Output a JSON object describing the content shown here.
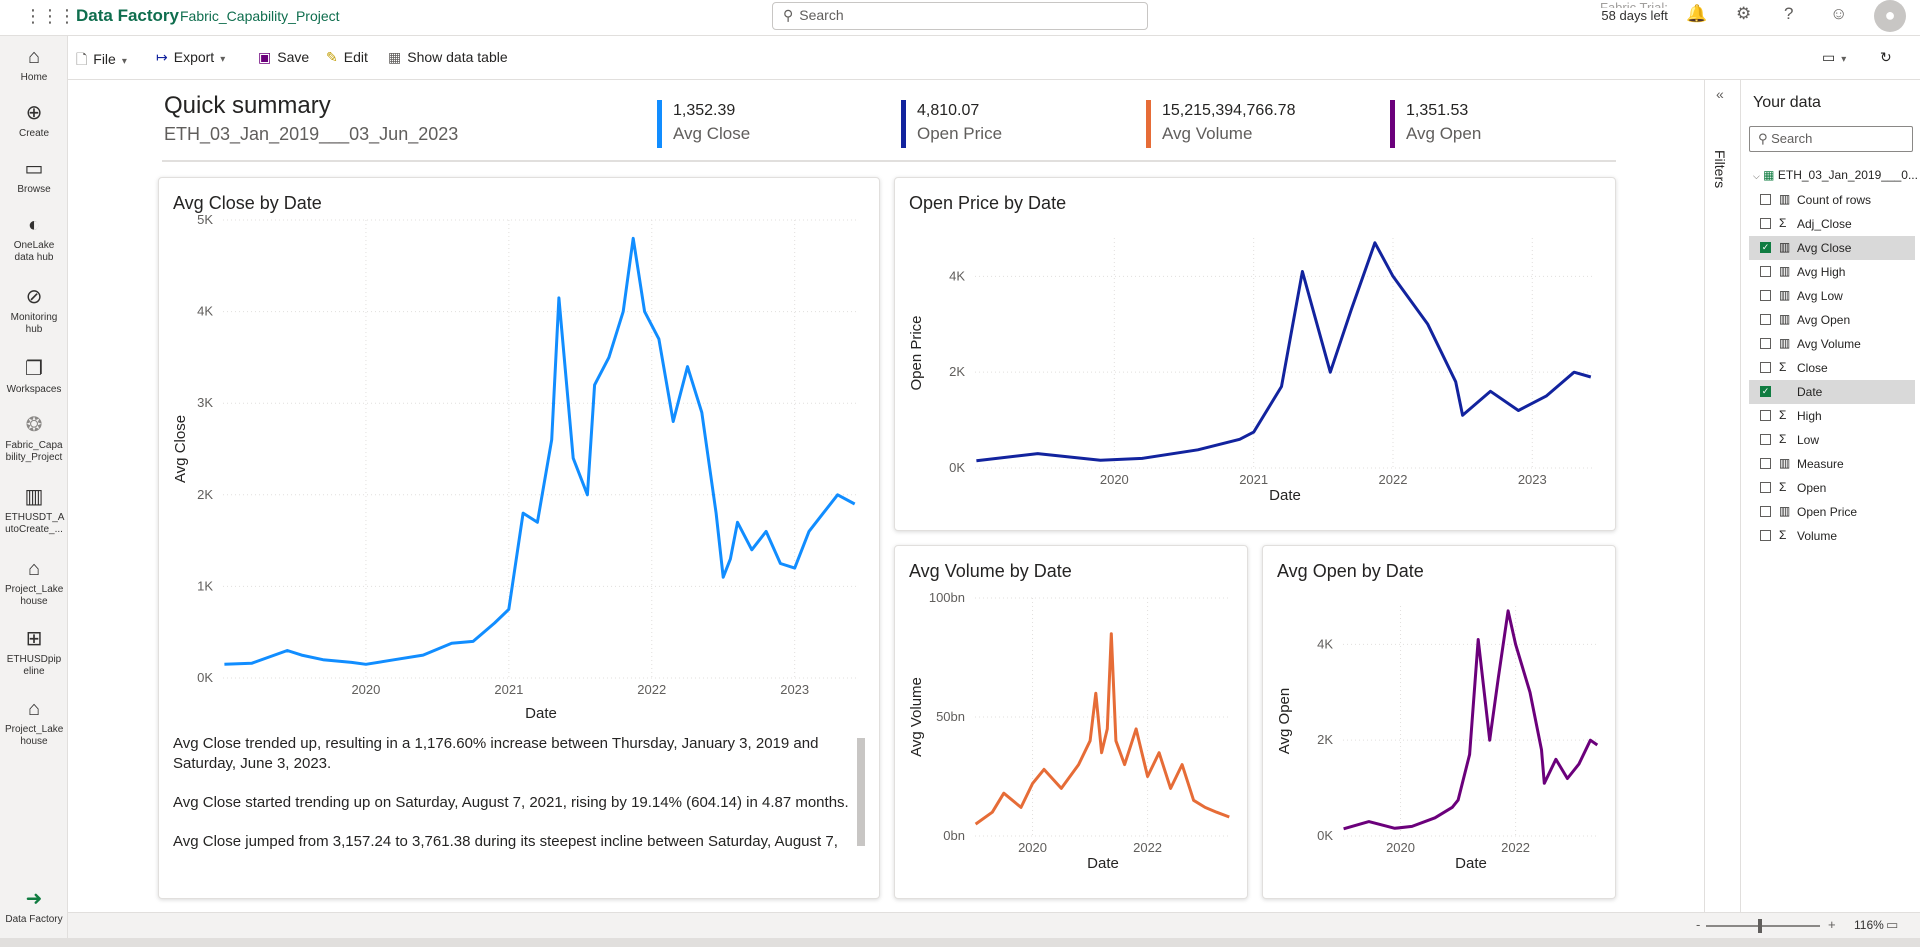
{
  "topbar": {
    "app_name": "Data Factory",
    "project": "Fabric_Capability_Project",
    "search_placeholder": "Search",
    "trial_line1": "Fabric Trial:",
    "trial_line2": "58 days left"
  },
  "rail": {
    "items": [
      {
        "label": "Home",
        "icon": "home-icon"
      },
      {
        "label": "Create",
        "icon": "create-icon"
      },
      {
        "label": "Browse",
        "icon": "folder-icon"
      },
      {
        "label": "OneLake data hub",
        "icon": "onelake-icon"
      },
      {
        "label": "Monitoring hub",
        "icon": "monitor-icon"
      },
      {
        "label": "Workspaces",
        "icon": "workspaces-icon"
      },
      {
        "label": "Fabric_Capa bility_Project",
        "icon": "workspace-icon"
      },
      {
        "label": "ETHUSDT_A utoCreate_...",
        "icon": "report-icon"
      },
      {
        "label": "Project_Lake house",
        "icon": "lakehouse-icon"
      },
      {
        "label": "ETHUSDpip eline",
        "icon": "pipeline-icon"
      },
      {
        "label": "Project_Lake house",
        "icon": "lakehouse-icon"
      }
    ],
    "footer_label": "Data Factory"
  },
  "toolbar": {
    "file": "File",
    "export": "Export",
    "save": "Save",
    "edit": "Edit",
    "show_table": "Show data table"
  },
  "summary": {
    "title": "Quick summary",
    "subtitle": "ETH_03_Jan_2019___03_Jun_2023",
    "kpis": [
      {
        "value": "1,352.39",
        "label": "Avg Close",
        "color": "#118dff"
      },
      {
        "value": "4,810.07",
        "label": "Open Price",
        "color": "#12239e"
      },
      {
        "value": "15,215,394,766.78",
        "label": "Avg Volume",
        "color": "#e66c37"
      },
      {
        "value": "1,351.53",
        "label": "Avg Open",
        "color": "#6b007b"
      }
    ]
  },
  "cards": {
    "close": {
      "title": "Avg Close by Date"
    },
    "open_price": {
      "title": "Open Price by Date"
    },
    "volume": {
      "title": "Avg Volume by Date"
    },
    "avg_open": {
      "title": "Avg Open by Date"
    }
  },
  "narrative": [
    "Avg Close trended up, resulting in a 1,176.60% increase between Thursday, January 3, 2019 and Saturday, June 3, 2023.",
    "Avg Close started trending up on Saturday, August 7, 2021, rising by 19.14% (604.14) in 4.87 months.",
    "Avg Close jumped from 3,157.24 to 3,761.38 during its steepest incline between Saturday, August 7,"
  ],
  "panes": {
    "filters": "Filters",
    "data_title": "Your data",
    "search_placeholder": "Search",
    "table_name": "ETH_03_Jan_2019___0...",
    "fields": [
      {
        "name": "Count of rows",
        "type": "measure",
        "checked": false
      },
      {
        "name": "Adj_Close",
        "type": "sum",
        "checked": false
      },
      {
        "name": "Avg Close",
        "type": "measure",
        "checked": true
      },
      {
        "name": "Avg High",
        "type": "measure",
        "checked": false
      },
      {
        "name": "Avg Low",
        "type": "measure",
        "checked": false
      },
      {
        "name": "Avg Open",
        "type": "measure",
        "checked": false
      },
      {
        "name": "Avg Volume",
        "type": "measure",
        "checked": false
      },
      {
        "name": "Close",
        "type": "sum",
        "checked": false
      },
      {
        "name": "Date",
        "type": "none",
        "checked": true
      },
      {
        "name": "High",
        "type": "sum",
        "checked": false
      },
      {
        "name": "Low",
        "type": "sum",
        "checked": false
      },
      {
        "name": "Measure",
        "type": "measure",
        "checked": false
      },
      {
        "name": "Open",
        "type": "sum",
        "checked": false
      },
      {
        "name": "Open Price",
        "type": "measure",
        "checked": false
      },
      {
        "name": "Volume",
        "type": "sum",
        "checked": false
      }
    ]
  },
  "status": {
    "zoom": "116%"
  },
  "chart_data": [
    {
      "type": "line",
      "title": "Avg Close by Date",
      "xlabel": "Date",
      "ylabel": "Avg Close",
      "xlim": [
        2019.0,
        2023.45
      ],
      "ylim": [
        0,
        5000
      ],
      "yticks": [
        "0K",
        "1K",
        "2K",
        "3K",
        "4K",
        "5K"
      ],
      "xticks": [
        "2020",
        "2021",
        "2022",
        "2023"
      ],
      "color": "#118dff",
      "x": [
        2019.01,
        2019.2,
        2019.45,
        2019.55,
        2019.7,
        2019.9,
        2020.0,
        2020.2,
        2020.4,
        2020.6,
        2020.75,
        2020.9,
        2021.0,
        2021.1,
        2021.2,
        2021.3,
        2021.35,
        2021.45,
        2021.55,
        2021.6,
        2021.7,
        2021.8,
        2021.87,
        2021.95,
        2022.05,
        2022.15,
        2022.25,
        2022.35,
        2022.45,
        2022.5,
        2022.55,
        2022.6,
        2022.7,
        2022.8,
        2022.9,
        2023.0,
        2023.1,
        2023.2,
        2023.3,
        2023.42
      ],
      "y": [
        150,
        160,
        300,
        250,
        200,
        170,
        150,
        200,
        250,
        380,
        400,
        600,
        750,
        1800,
        1700,
        2600,
        4150,
        2400,
        2000,
        3200,
        3500,
        4000,
        4800,
        4000,
        3700,
        2800,
        3400,
        2900,
        1800,
        1100,
        1300,
        1700,
        1400,
        1600,
        1250,
        1200,
        1600,
        1800,
        2000,
        1900
      ]
    },
    {
      "type": "line",
      "title": "Open Price by Date",
      "xlabel": "Date",
      "ylabel": "Open Price",
      "xlim": [
        2019.0,
        2023.45
      ],
      "ylim": [
        0,
        4800
      ],
      "yticks": [
        "0K",
        "2K",
        "4K"
      ],
      "xticks": [
        "2020",
        "2021",
        "2022",
        "2023"
      ],
      "color": "#12239e",
      "x": [
        2019.01,
        2019.45,
        2019.9,
        2020.2,
        2020.6,
        2020.9,
        2021.0,
        2021.2,
        2021.35,
        2021.55,
        2021.7,
        2021.87,
        2022.0,
        2022.25,
        2022.45,
        2022.5,
        2022.7,
        2022.9,
        2023.1,
        2023.3,
        2023.42
      ],
      "y": [
        150,
        300,
        160,
        200,
        380,
        600,
        750,
        1700,
        4100,
        2000,
        3300,
        4700,
        4000,
        3000,
        1800,
        1100,
        1600,
        1200,
        1500,
        2000,
        1900
      ]
    },
    {
      "type": "line",
      "title": "Avg Volume by Date",
      "xlabel": "Date",
      "ylabel": "Avg Volume",
      "xlim": [
        2019.0,
        2023.45
      ],
      "ylim": [
        0,
        100
      ],
      "yticks": [
        "0bn",
        "50bn",
        "100bn"
      ],
      "xticks": [
        "2020",
        "2022"
      ],
      "color": "#e66c37",
      "x": [
        2019.01,
        2019.3,
        2019.5,
        2019.8,
        2020.0,
        2020.2,
        2020.5,
        2020.8,
        2021.0,
        2021.1,
        2021.2,
        2021.3,
        2021.37,
        2021.45,
        2021.6,
        2021.8,
        2022.0,
        2022.2,
        2022.4,
        2022.6,
        2022.8,
        2023.0,
        2023.2,
        2023.42
      ],
      "y": [
        5,
        10,
        18,
        12,
        22,
        28,
        20,
        30,
        40,
        60,
        35,
        45,
        85,
        40,
        30,
        45,
        25,
        35,
        20,
        30,
        15,
        12,
        10,
        8
      ]
    },
    {
      "type": "line",
      "title": "Avg Open by Date",
      "xlabel": "Date",
      "ylabel": "Avg Open",
      "xlim": [
        2019.0,
        2023.45
      ],
      "ylim": [
        0,
        4800
      ],
      "yticks": [
        "0K",
        "2K",
        "4K"
      ],
      "xticks": [
        "2020",
        "2022"
      ],
      "color": "#6b007b",
      "x": [
        2019.01,
        2019.45,
        2019.9,
        2020.2,
        2020.6,
        2020.9,
        2021.0,
        2021.2,
        2021.35,
        2021.55,
        2021.7,
        2021.87,
        2022.0,
        2022.25,
        2022.45,
        2022.5,
        2022.7,
        2022.9,
        2023.1,
        2023.3,
        2023.42
      ],
      "y": [
        150,
        300,
        160,
        200,
        380,
        600,
        750,
        1700,
        4100,
        2000,
        3300,
        4700,
        4000,
        3000,
        1800,
        1100,
        1600,
        1200,
        1500,
        2000,
        1900
      ]
    }
  ]
}
